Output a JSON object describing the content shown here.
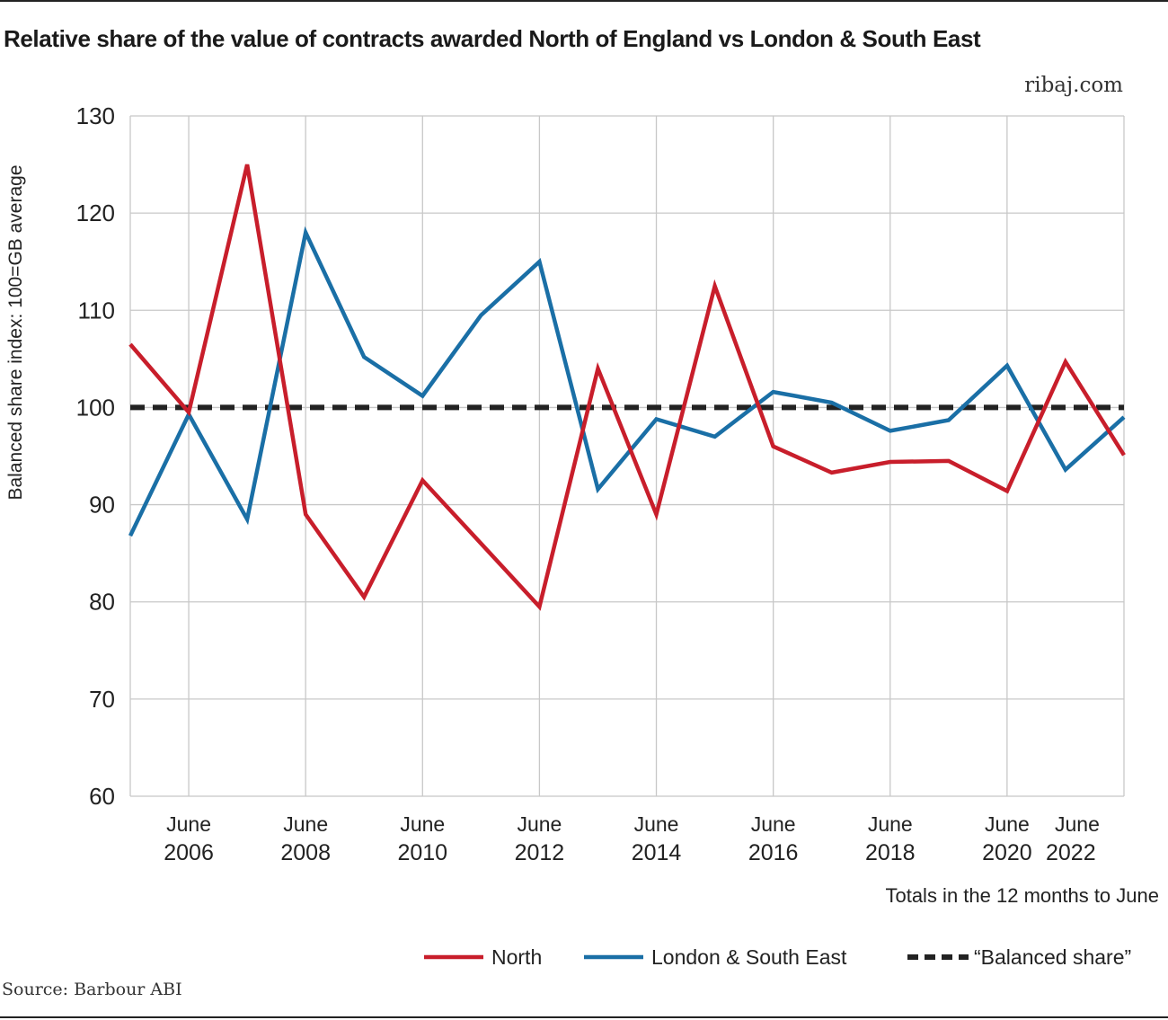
{
  "title": "Relative share of the value of contracts awarded North of England vs London & South East",
  "brand": "ribaj.com",
  "source": "Source: Barbour ABI",
  "chart_data": {
    "type": "line",
    "title": "Relative share of the value of contracts awarded North of England vs London & South East",
    "ylabel": "Balanced share index: 100=GB average",
    "xlabel": "Totals in the 12 months to June",
    "ylim": [
      60,
      130
    ],
    "yticks": [
      60,
      70,
      80,
      90,
      100,
      110,
      120,
      130
    ],
    "xlim": [
      2005,
      2022
    ],
    "xtick_years": [
      2006,
      2008,
      2010,
      2012,
      2014,
      2016,
      2018,
      2020,
      2022
    ],
    "xtick_month": "June",
    "grid": true,
    "legend_position": "bottom-right",
    "x": [
      2005,
      2006,
      2007,
      2008,
      2009,
      2010,
      2011,
      2012,
      2013,
      2014,
      2015,
      2016,
      2017,
      2018,
      2019,
      2020,
      2021,
      2022
    ],
    "series": [
      {
        "name": "North",
        "color": "#c81e2b",
        "dashed": false,
        "values": [
          106.5,
          99.5,
          125,
          89,
          80.5,
          92.5,
          86,
          79.5,
          104,
          89,
          112.5,
          96,
          93.3,
          94.4,
          94.5,
          91.4,
          104.7,
          95.1
        ]
      },
      {
        "name": "London & South East",
        "color": "#1a6fa6",
        "dashed": false,
        "values": [
          86.8,
          99.3,
          88.5,
          118,
          105.2,
          101.2,
          109.5,
          115,
          91.6,
          98.8,
          97,
          101.6,
          100.5,
          97.6,
          98.7,
          104.3,
          93.6,
          99
        ]
      },
      {
        "name": "“Balanced share”",
        "color": "#222222",
        "dashed": true,
        "values": [
          100,
          100,
          100,
          100,
          100,
          100,
          100,
          100,
          100,
          100,
          100,
          100,
          100,
          100,
          100,
          100,
          100,
          100
        ]
      }
    ]
  }
}
